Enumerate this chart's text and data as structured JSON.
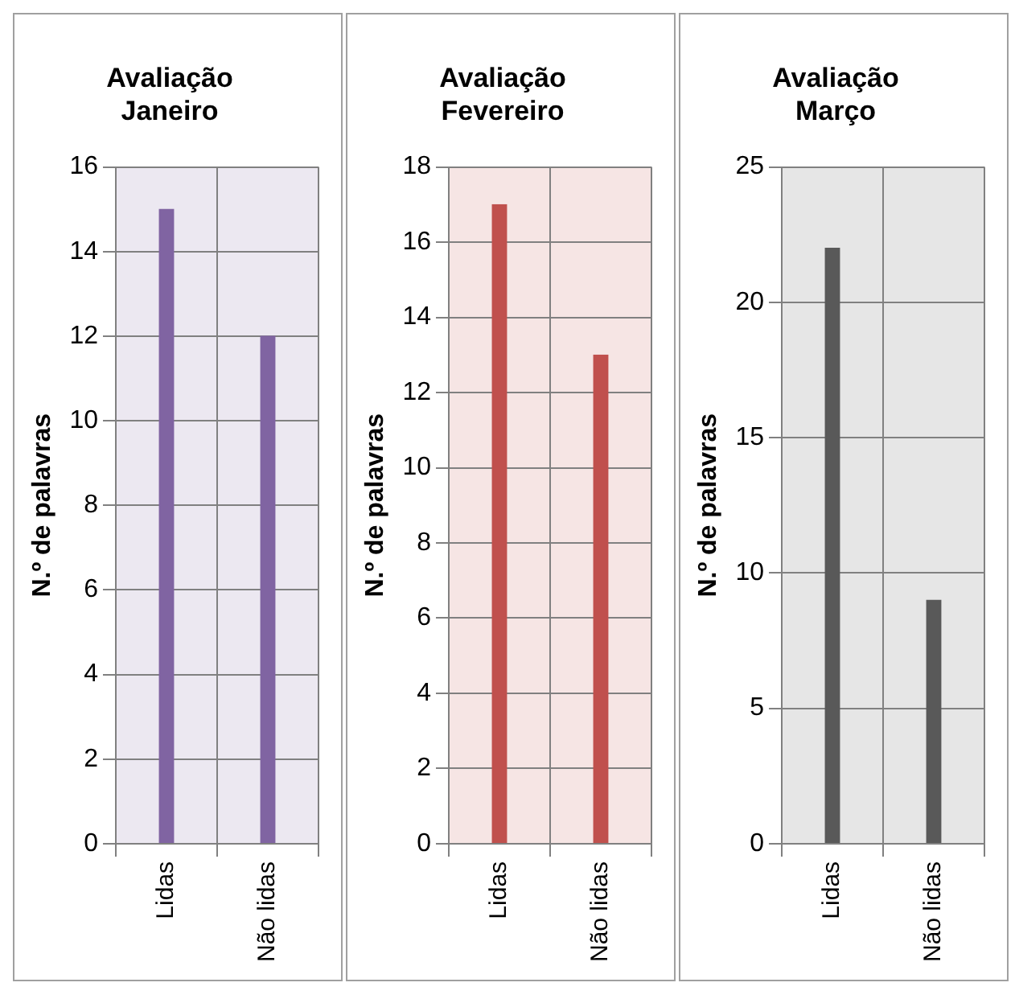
{
  "chart_data": [
    {
      "type": "bar",
      "title": "Avaliação Janeiro",
      "ylabel": "N.º de palavras",
      "categories": [
        "Lidas",
        "Não lidas"
      ],
      "values": [
        15,
        12
      ],
      "color": "#8064a2",
      "ylim": [
        0,
        16
      ],
      "yticks": [
        0,
        2,
        4,
        6,
        8,
        10,
        12,
        14,
        16
      ],
      "grid": true
    },
    {
      "type": "bar",
      "title": "Avaliação Fevereiro",
      "ylabel": "N.º de palavras",
      "categories": [
        "Lidas",
        "Não lidas"
      ],
      "values": [
        17,
        13
      ],
      "color": "#c0504d",
      "ylim": [
        0,
        18
      ],
      "yticks": [
        0,
        2,
        4,
        6,
        8,
        10,
        12,
        14,
        16,
        18
      ],
      "grid": true
    },
    {
      "type": "bar",
      "title": "Avaliação Março",
      "ylabel": "N.º de palavras",
      "categories": [
        "Lidas",
        "Não lidas"
      ],
      "values": [
        22,
        9
      ],
      "color": "#595959",
      "ylim": [
        0,
        25
      ],
      "yticks": [
        0,
        5,
        10,
        15,
        20,
        25
      ],
      "grid": true
    }
  ]
}
